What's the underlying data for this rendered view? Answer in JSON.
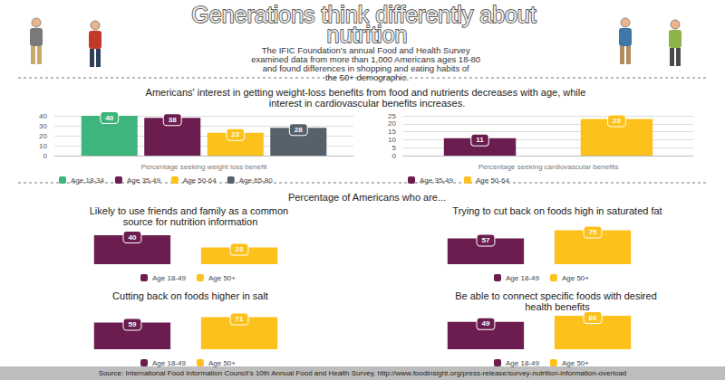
{
  "title": "Generations think differently about nutrition",
  "subtitle": "The IFIC Foundation's annual Food and Health Survey examined data from more than 1,000 Americans ages 18-80 and found differences in shopping and eating habits of the 50+ demographic.",
  "headings": [
    "Americans' interest in getting weight-loss benefits from food and nutrients decreases with age, while interest in cardiovascular benefits increases.",
    "Percentage of Americans who are..."
  ],
  "source": "Source: International Food Information Council's 10th Annual Food and Health Survey, http://www.foodinsight.org/press-release/survey-nutrition-information-overload",
  "chart_data": [
    {
      "type": "bar",
      "categories": [
        "Percentage seeking weight loss benefit"
      ],
      "series": [
        {
          "name": "Age 18-34",
          "color": "#3db57c",
          "values": [
            40
          ]
        },
        {
          "name": "Age 35-49",
          "color": "#6b1d4f",
          "values": [
            38
          ]
        },
        {
          "name": "Age 50-64",
          "color": "#fcc11a",
          "values": [
            23
          ]
        },
        {
          "name": "Age 65-80",
          "color": "#56616b",
          "values": [
            28
          ]
        }
      ],
      "ylim": [
        0,
        40
      ],
      "yticks": [
        0,
        10,
        20,
        30,
        40
      ],
      "grid": true,
      "data_labels": true,
      "legend": "bottom"
    },
    {
      "type": "bar",
      "categories": [
        "Percentage seeking cardiovascular benefits"
      ],
      "series": [
        {
          "name": "Age 35-49",
          "color": "#6b1d4f",
          "values": [
            11
          ]
        },
        {
          "name": "Age 50-64",
          "color": "#fcc11a",
          "values": [
            23
          ]
        }
      ],
      "ylim": [
        0,
        25
      ],
      "yticks": [
        0,
        5,
        10,
        15,
        20,
        25
      ],
      "grid": true,
      "data_labels": true,
      "legend": "bottom"
    },
    {
      "type": "bar",
      "title": "Likely to use friends and family as a common source for nutrition information",
      "categories": [
        null
      ],
      "series": [
        {
          "name": "Age 18-49",
          "color": "#6b1d4f",
          "values": [
            40
          ]
        },
        {
          "name": "Age 50+",
          "color": "#fcc11a",
          "values": [
            23
          ]
        }
      ],
      "ylim": [
        0,
        45
      ],
      "grid": false,
      "tick_labels": false,
      "data_labels": true,
      "legend": "bottom"
    },
    {
      "type": "bar",
      "title": "Trying to cut back on foods high in saturated fat",
      "categories": [
        null
      ],
      "series": [
        {
          "name": "Age 18-49",
          "color": "#6b1d4f",
          "values": [
            57
          ]
        },
        {
          "name": "Age 50+",
          "color": "#fcc11a",
          "values": [
            75
          ]
        }
      ],
      "ylim": [
        0,
        80
      ],
      "grid": false,
      "tick_labels": false,
      "data_labels": true,
      "legend": "bottom"
    },
    {
      "type": "bar",
      "title": "Cutting back on foods higher in salt",
      "categories": [
        null
      ],
      "series": [
        {
          "name": "Age 18-49",
          "color": "#6b1d4f",
          "values": [
            59
          ]
        },
        {
          "name": "Age 50+",
          "color": "#fcc11a",
          "values": [
            71
          ]
        }
      ],
      "ylim": [
        0,
        80
      ],
      "grid": false,
      "tick_labels": false,
      "data_labels": true,
      "legend": "bottom"
    },
    {
      "type": "bar",
      "title": "Be able to connect specific foods with desired health benefits",
      "categories": [
        null
      ],
      "series": [
        {
          "name": "Age 18-49",
          "color": "#6b1d4f",
          "values": [
            49
          ]
        },
        {
          "name": "Age 50+",
          "color": "#fcc11a",
          "values": [
            60
          ]
        }
      ],
      "ylim": [
        0,
        65
      ],
      "grid": false,
      "tick_labels": false,
      "data_labels": true,
      "legend": "bottom"
    }
  ]
}
